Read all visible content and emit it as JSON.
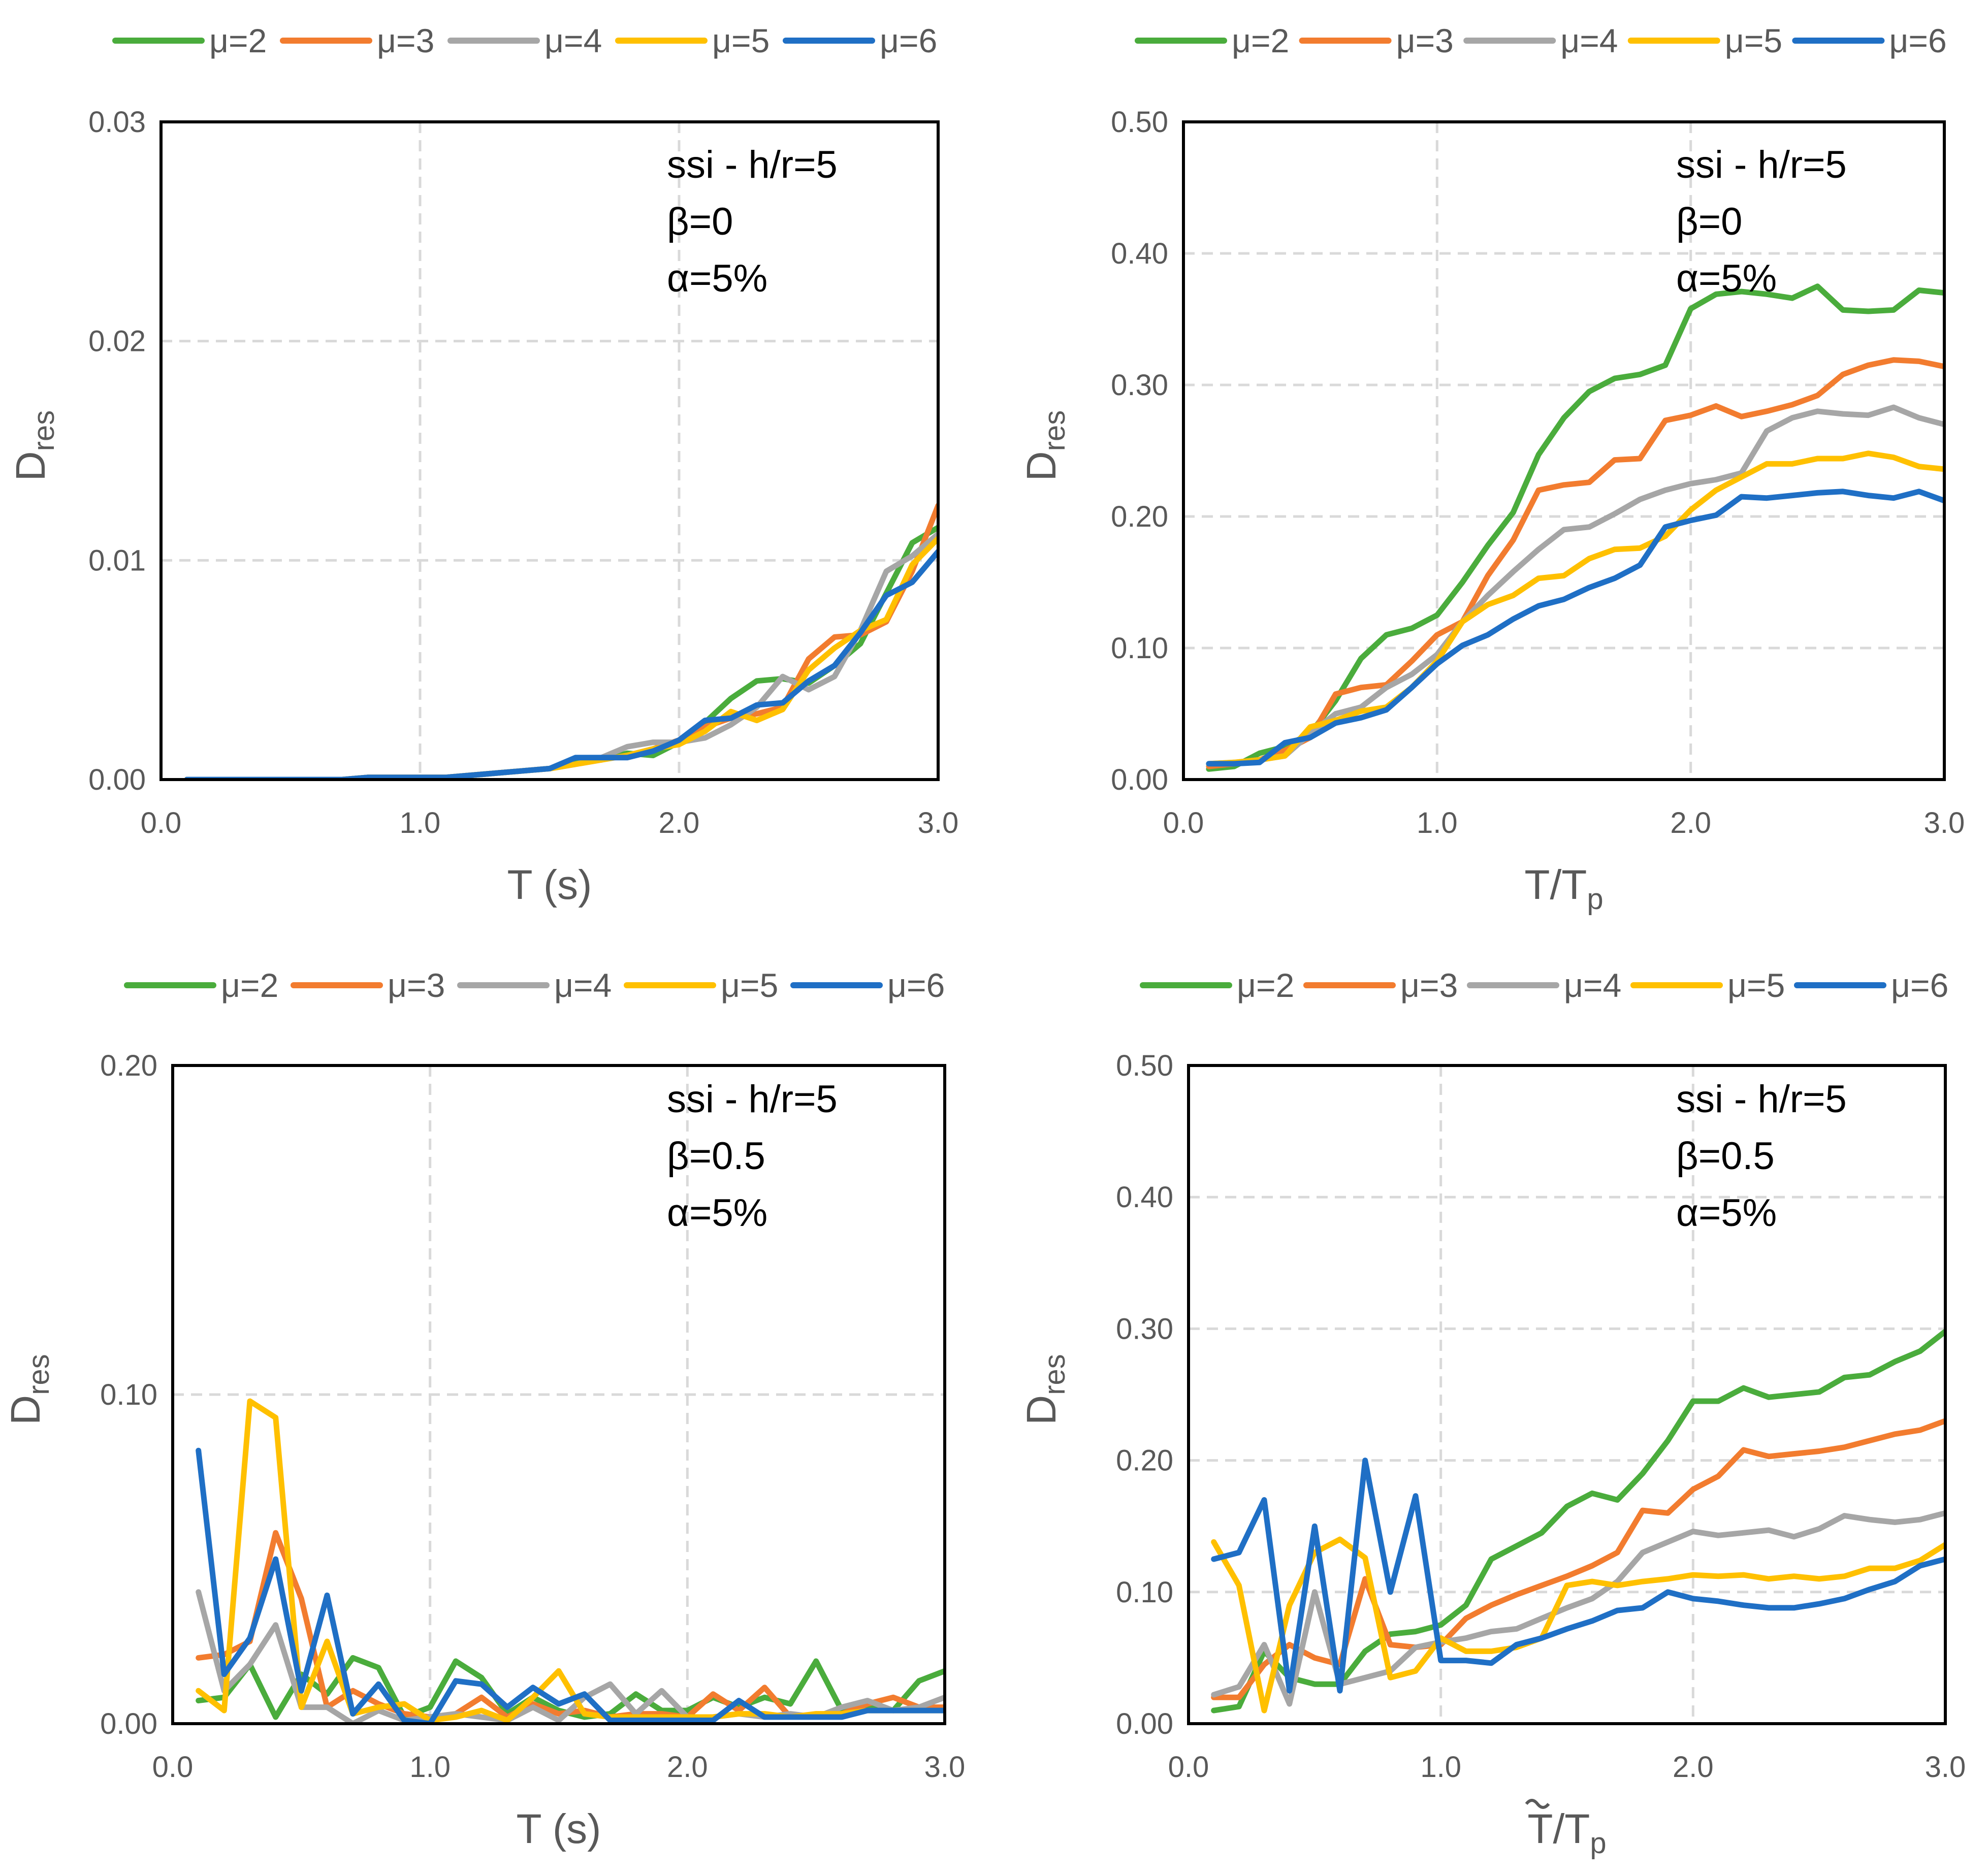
{
  "chart_data": [
    {
      "type": "line",
      "id": "top-left",
      "xlabel": "T (s)",
      "ylabel": "D",
      "ylabel_sub": "res",
      "xlim": [
        0,
        3
      ],
      "ylim": [
        0,
        0.03
      ],
      "xticks": [
        "0.0",
        "1.0",
        "2.0",
        "3.0"
      ],
      "yticks": [
        "0.00",
        "0.01",
        "0.02",
        "0.03"
      ],
      "annotations": [
        "ssi - h/r=5",
        "β=0",
        "α=5%"
      ],
      "x": [
        0.1,
        0.2,
        0.3,
        0.4,
        0.5,
        0.6,
        0.7,
        0.8,
        0.9,
        1.0,
        1.1,
        1.2,
        1.3,
        1.4,
        1.5,
        1.6,
        1.7,
        1.8,
        1.9,
        2.0,
        2.1,
        2.2,
        2.3,
        2.4,
        2.5,
        2.6,
        2.7,
        2.8,
        2.9,
        3.0
      ],
      "series": [
        {
          "name": "μ=2",
          "color": "#4aac3c",
          "values": [
            0,
            0,
            0,
            0,
            0,
            0,
            0,
            0.0001,
            0.0001,
            0.0001,
            0.0001,
            0.0002,
            0.0003,
            0.0004,
            0.0005,
            0.0008,
            0.0009,
            0.0012,
            0.0011,
            0.0017,
            0.0026,
            0.0037,
            0.0045,
            0.0046,
            0.0044,
            0.0052,
            0.0062,
            0.0085,
            0.0108,
            0.0115
          ]
        },
        {
          "name": "μ=3",
          "color": "#f27c2f",
          "values": [
            0,
            0,
            0,
            0,
            0,
            0,
            0,
            0.0001,
            0.0001,
            0.0001,
            0.0001,
            0.0002,
            0.0003,
            0.0004,
            0.0005,
            0.0007,
            0.0009,
            0.0011,
            0.0014,
            0.0018,
            0.0024,
            0.0028,
            0.003,
            0.0033,
            0.0055,
            0.0065,
            0.0066,
            0.0072,
            0.0095,
            0.0125
          ]
        },
        {
          "name": "μ=4",
          "color": "#a6a6a6",
          "values": [
            0,
            0,
            0,
            0,
            0,
            0,
            0,
            0.0001,
            0.0001,
            0.0001,
            0.0001,
            0.0002,
            0.0003,
            0.0004,
            0.0005,
            0.0007,
            0.001,
            0.0015,
            0.0017,
            0.0017,
            0.0019,
            0.0025,
            0.0033,
            0.0047,
            0.0041,
            0.0047,
            0.0068,
            0.0095,
            0.0102,
            0.0112
          ]
        },
        {
          "name": "μ=5",
          "color": "#ffc000",
          "values": [
            0,
            0,
            0,
            0,
            0,
            0,
            0,
            0.0001,
            0.0001,
            0.0001,
            0.0001,
            0.0002,
            0.0003,
            0.0004,
            0.0005,
            0.0007,
            0.0009,
            0.0011,
            0.0014,
            0.0016,
            0.0022,
            0.0031,
            0.0027,
            0.0032,
            0.005,
            0.006,
            0.0068,
            0.0073,
            0.0098,
            0.011
          ]
        },
        {
          "name": "μ=6",
          "color": "#1f6fc5",
          "values": [
            0,
            0,
            0,
            0,
            0,
            0,
            0,
            0.0001,
            0.0001,
            0.0001,
            0.0001,
            0.0002,
            0.0003,
            0.0004,
            0.0005,
            0.001,
            0.001,
            0.001,
            0.0013,
            0.0018,
            0.0027,
            0.0028,
            0.0034,
            0.0035,
            0.0045,
            0.0052,
            0.0067,
            0.0084,
            0.009,
            0.0104
          ]
        }
      ]
    },
    {
      "type": "line",
      "id": "top-right",
      "xlabel": "T/T",
      "xlabel_sub": "p",
      "xlabel_tilde": false,
      "ylabel": "D",
      "ylabel_sub": "res",
      "xlim": [
        0,
        3
      ],
      "ylim": [
        0,
        0.5
      ],
      "xticks": [
        "0.0",
        "1.0",
        "2.0",
        "3.0"
      ],
      "yticks": [
        "0.00",
        "0.10",
        "0.20",
        "0.30",
        "0.40",
        "0.50"
      ],
      "annotations": [
        "ssi - h/r=5",
        "β=0",
        "α=5%"
      ],
      "x": [
        0.1,
        0.2,
        0.3,
        0.4,
        0.5,
        0.6,
        0.7,
        0.8,
        0.9,
        1.0,
        1.1,
        1.2,
        1.3,
        1.4,
        1.5,
        1.6,
        1.7,
        1.8,
        1.9,
        2.0,
        2.1,
        2.2,
        2.3,
        2.4,
        2.5,
        2.6,
        2.7,
        2.8,
        2.9,
        3.0
      ],
      "series": [
        {
          "name": "μ=2",
          "color": "#4aac3c",
          "values": [
            0.008,
            0.01,
            0.02,
            0.025,
            0.035,
            0.06,
            0.092,
            0.11,
            0.115,
            0.125,
            0.15,
            0.178,
            0.203,
            0.247,
            0.275,
            0.295,
            0.305,
            0.308,
            0.315,
            0.358,
            0.369,
            0.371,
            0.369,
            0.366,
            0.375,
            0.357,
            0.356,
            0.357,
            0.372,
            0.37
          ]
        },
        {
          "name": "μ=3",
          "color": "#f27c2f",
          "values": [
            0.01,
            0.012,
            0.015,
            0.022,
            0.032,
            0.065,
            0.07,
            0.072,
            0.09,
            0.11,
            0.12,
            0.155,
            0.182,
            0.22,
            0.224,
            0.226,
            0.243,
            0.244,
            0.273,
            0.277,
            0.284,
            0.276,
            0.28,
            0.285,
            0.292,
            0.308,
            0.315,
            0.319,
            0.318,
            0.314
          ]
        },
        {
          "name": "μ=4",
          "color": "#a6a6a6",
          "values": [
            0.012,
            0.013,
            0.015,
            0.018,
            0.035,
            0.05,
            0.055,
            0.07,
            0.08,
            0.095,
            0.12,
            0.14,
            0.158,
            0.175,
            0.19,
            0.192,
            0.202,
            0.213,
            0.22,
            0.225,
            0.228,
            0.233,
            0.265,
            0.275,
            0.28,
            0.278,
            0.277,
            0.283,
            0.275,
            0.27
          ]
        },
        {
          "name": "μ=5",
          "color": "#ffc000",
          "values": [
            0.012,
            0.013,
            0.015,
            0.018,
            0.04,
            0.045,
            0.052,
            0.055,
            0.07,
            0.09,
            0.12,
            0.133,
            0.14,
            0.153,
            0.155,
            0.168,
            0.175,
            0.176,
            0.185,
            0.205,
            0.22,
            0.23,
            0.24,
            0.24,
            0.244,
            0.244,
            0.248,
            0.245,
            0.238,
            0.236
          ]
        },
        {
          "name": "μ=6",
          "color": "#1f6fc5",
          "values": [
            0.012,
            0.012,
            0.013,
            0.028,
            0.032,
            0.043,
            0.047,
            0.053,
            0.07,
            0.088,
            0.102,
            0.11,
            0.122,
            0.132,
            0.137,
            0.146,
            0.153,
            0.163,
            0.192,
            0.197,
            0.201,
            0.215,
            0.214,
            0.216,
            0.218,
            0.219,
            0.216,
            0.214,
            0.219,
            0.212
          ]
        }
      ]
    },
    {
      "type": "line",
      "id": "bottom-left",
      "xlabel": "T (s)",
      "ylabel": "D",
      "ylabel_sub": "res",
      "xlim": [
        0,
        3
      ],
      "ylim": [
        0,
        0.2
      ],
      "xticks": [
        "0.0",
        "1.0",
        "2.0",
        "3.0"
      ],
      "yticks": [
        "0.00",
        "0.10",
        "0.20"
      ],
      "annotations": [
        "ssi - h/r=5",
        "β=0.5",
        "α=5%"
      ],
      "x": [
        0.1,
        0.2,
        0.3,
        0.4,
        0.5,
        0.6,
        0.7,
        0.8,
        0.9,
        1.0,
        1.1,
        1.2,
        1.3,
        1.4,
        1.5,
        1.6,
        1.7,
        1.8,
        1.9,
        2.0,
        2.1,
        2.2,
        2.3,
        2.4,
        2.5,
        2.6,
        2.7,
        2.8,
        2.9,
        3.0
      ],
      "series": [
        {
          "name": "μ=2",
          "color": "#4aac3c",
          "values": [
            0.007,
            0.008,
            0.018,
            0.002,
            0.015,
            0.009,
            0.02,
            0.017,
            0.002,
            0.005,
            0.019,
            0.014,
            0.003,
            0.008,
            0.004,
            0.002,
            0.003,
            0.009,
            0.004,
            0.004,
            0.008,
            0.005,
            0.008,
            0.006,
            0.019,
            0.004,
            0.005,
            0.004,
            0.013,
            0.016
          ]
        },
        {
          "name": "μ=3",
          "color": "#f27c2f",
          "values": [
            0.02,
            0.021,
            0.025,
            0.058,
            0.038,
            0.005,
            0.01,
            0.006,
            0.003,
            0.002,
            0.003,
            0.008,
            0.002,
            0.006,
            0.003,
            0.004,
            0.002,
            0.003,
            0.003,
            0.002,
            0.009,
            0.004,
            0.011,
            0.002,
            0.002,
            0.003,
            0.006,
            0.008,
            0.005,
            0.005
          ]
        },
        {
          "name": "μ=4",
          "color": "#a6a6a6",
          "values": [
            0.04,
            0.01,
            0.018,
            0.03,
            0.005,
            0.005,
            0.0,
            0.004,
            0.001,
            0.002,
            0.003,
            0.002,
            0.001,
            0.005,
            0.001,
            0.008,
            0.012,
            0.003,
            0.01,
            0.002,
            0.002,
            0.003,
            0.002,
            0.003,
            0.002,
            0.005,
            0.007,
            0.004,
            0.005,
            0.008
          ]
        },
        {
          "name": "μ=5",
          "color": "#ffc000",
          "values": [
            0.01,
            0.004,
            0.098,
            0.093,
            0.005,
            0.025,
            0.003,
            0.005,
            0.006,
            0.001,
            0.002,
            0.004,
            0.001,
            0.008,
            0.016,
            0.003,
            0.002,
            0.002,
            0.002,
            0.002,
            0.002,
            0.003,
            0.003,
            0.002,
            0.003,
            0.003,
            0.004,
            0.004,
            0.004,
            0.004
          ]
        },
        {
          "name": "μ=6",
          "color": "#1f6fc5",
          "values": [
            0.083,
            0.015,
            0.026,
            0.05,
            0.01,
            0.039,
            0.003,
            0.012,
            0.001,
            0.0,
            0.013,
            0.012,
            0.005,
            0.011,
            0.006,
            0.009,
            0.001,
            0.001,
            0.001,
            0.001,
            0.001,
            0.007,
            0.002,
            0.002,
            0.002,
            0.002,
            0.004,
            0.004,
            0.004,
            0.004
          ]
        }
      ]
    },
    {
      "type": "line",
      "id": "bottom-right",
      "xlabel": "T/T",
      "xlabel_sub": "p",
      "xlabel_tilde": true,
      "ylabel": "D",
      "ylabel_sub": "res",
      "xlim": [
        0,
        3
      ],
      "ylim": [
        0,
        0.5
      ],
      "xticks": [
        "0.0",
        "1.0",
        "2.0",
        "3.0"
      ],
      "yticks": [
        "0.00",
        "0.10",
        "0.20",
        "0.30",
        "0.40",
        "0.50"
      ],
      "annotations": [
        "ssi - h/r=5",
        "β=0.5",
        "α=5%"
      ],
      "x": [
        0.1,
        0.2,
        0.3,
        0.4,
        0.5,
        0.6,
        0.7,
        0.8,
        0.9,
        1.0,
        1.1,
        1.2,
        1.3,
        1.4,
        1.5,
        1.6,
        1.7,
        1.8,
        1.9,
        2.0,
        2.1,
        2.2,
        2.3,
        2.4,
        2.5,
        2.6,
        2.7,
        2.8,
        2.9,
        3.0
      ],
      "series": [
        {
          "name": "μ=2",
          "color": "#4aac3c",
          "values": [
            0.01,
            0.013,
            0.055,
            0.035,
            0.03,
            0.03,
            0.055,
            0.068,
            0.07,
            0.075,
            0.09,
            0.125,
            0.135,
            0.145,
            0.165,
            0.175,
            0.17,
            0.19,
            0.215,
            0.245,
            0.245,
            0.255,
            0.248,
            0.25,
            0.252,
            0.263,
            0.265,
            0.275,
            0.283,
            0.298
          ]
        },
        {
          "name": "μ=3",
          "color": "#f27c2f",
          "values": [
            0.02,
            0.02,
            0.045,
            0.06,
            0.05,
            0.045,
            0.11,
            0.06,
            0.058,
            0.06,
            0.08,
            0.09,
            0.098,
            0.105,
            0.112,
            0.12,
            0.13,
            0.162,
            0.16,
            0.178,
            0.188,
            0.208,
            0.203,
            0.205,
            0.207,
            0.21,
            0.215,
            0.22,
            0.223,
            0.23
          ]
        },
        {
          "name": "μ=4",
          "color": "#a6a6a6",
          "values": [
            0.022,
            0.028,
            0.06,
            0.015,
            0.1,
            0.03,
            0.035,
            0.04,
            0.058,
            0.062,
            0.065,
            0.07,
            0.072,
            0.08,
            0.088,
            0.095,
            0.108,
            0.13,
            0.138,
            0.146,
            0.143,
            0.145,
            0.147,
            0.142,
            0.148,
            0.158,
            0.155,
            0.153,
            0.155,
            0.16
          ]
        },
        {
          "name": "μ=5",
          "color": "#ffc000",
          "values": [
            0.138,
            0.105,
            0.01,
            0.09,
            0.13,
            0.14,
            0.126,
            0.035,
            0.04,
            0.065,
            0.055,
            0.055,
            0.058,
            0.065,
            0.105,
            0.108,
            0.105,
            0.108,
            0.11,
            0.113,
            0.112,
            0.113,
            0.11,
            0.112,
            0.11,
            0.112,
            0.118,
            0.118,
            0.124,
            0.136
          ]
        },
        {
          "name": "μ=6",
          "color": "#1f6fc5",
          "values": [
            0.125,
            0.13,
            0.17,
            0.025,
            0.15,
            0.025,
            0.2,
            0.1,
            0.173,
            0.048,
            0.048,
            0.046,
            0.06,
            0.065,
            0.072,
            0.078,
            0.086,
            0.088,
            0.1,
            0.095,
            0.093,
            0.09,
            0.088,
            0.088,
            0.091,
            0.095,
            0.102,
            0.108,
            0.12,
            0.125
          ]
        }
      ]
    }
  ]
}
